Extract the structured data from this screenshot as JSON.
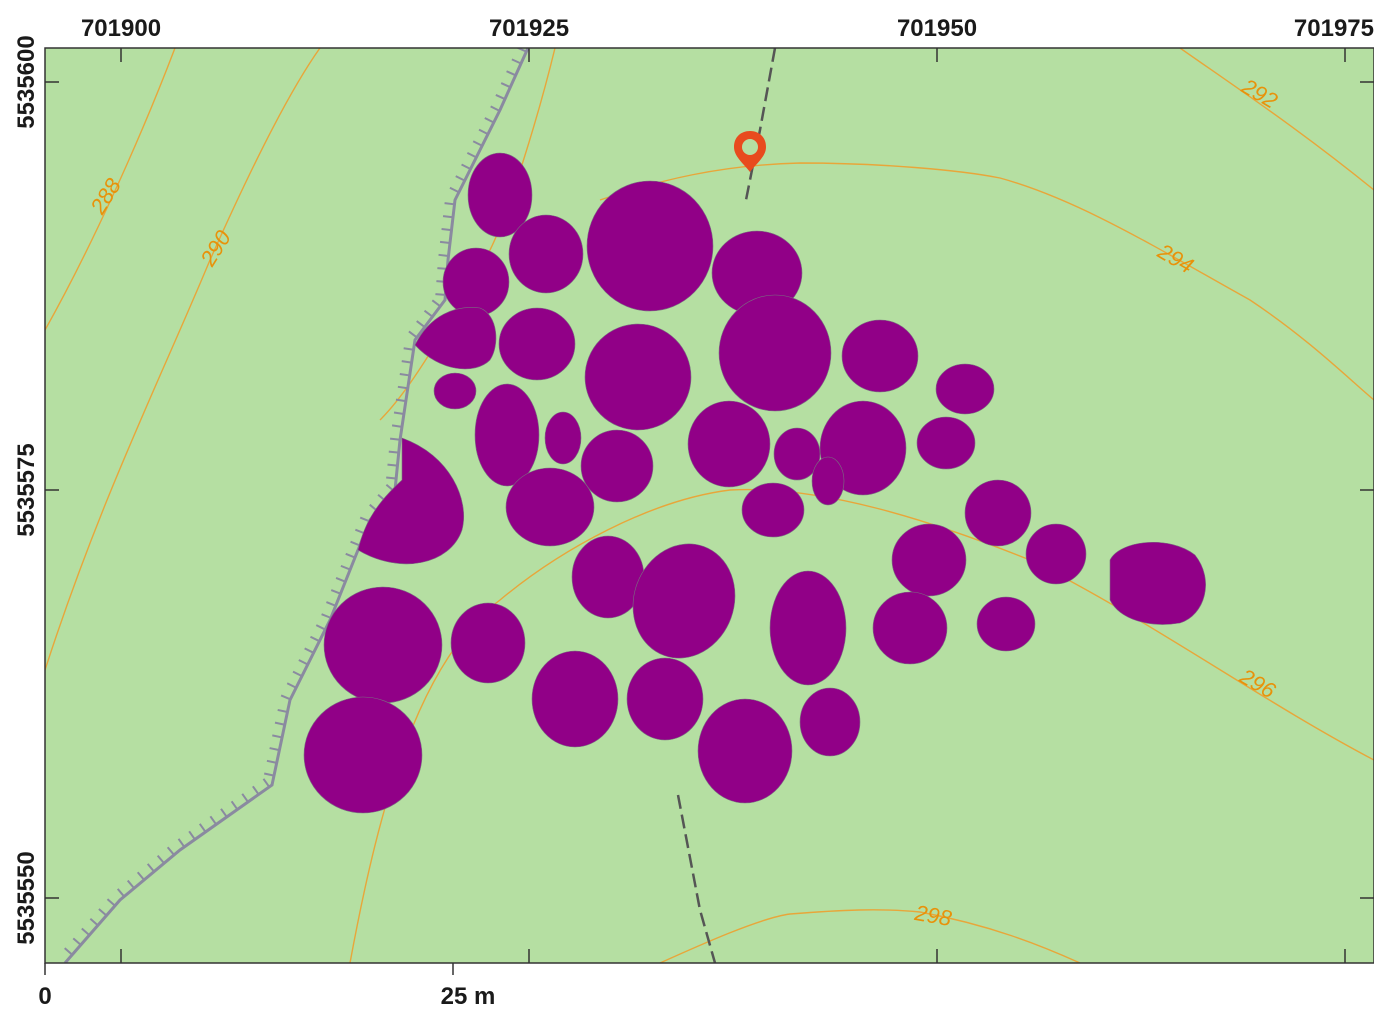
{
  "map": {
    "background_color": "#b5dfa2",
    "feature_color": "#910087",
    "contour_color": "#e8a63a",
    "fence_color": "#8a8aa0",
    "path_color": "#555555",
    "marker_color": "#e84b1e"
  },
  "x_axis": {
    "labels": [
      "701900",
      "701925",
      "701950",
      "701975"
    ]
  },
  "y_axis": {
    "labels": [
      "5535600",
      "5535575",
      "5535550"
    ]
  },
  "contours": {
    "labels": [
      "288",
      "290",
      "292",
      "294",
      "296",
      "298"
    ]
  },
  "scale_bar": {
    "zero_label": "0",
    "length_label": "25 m"
  },
  "icons": {
    "marker": "location-pin-icon"
  }
}
